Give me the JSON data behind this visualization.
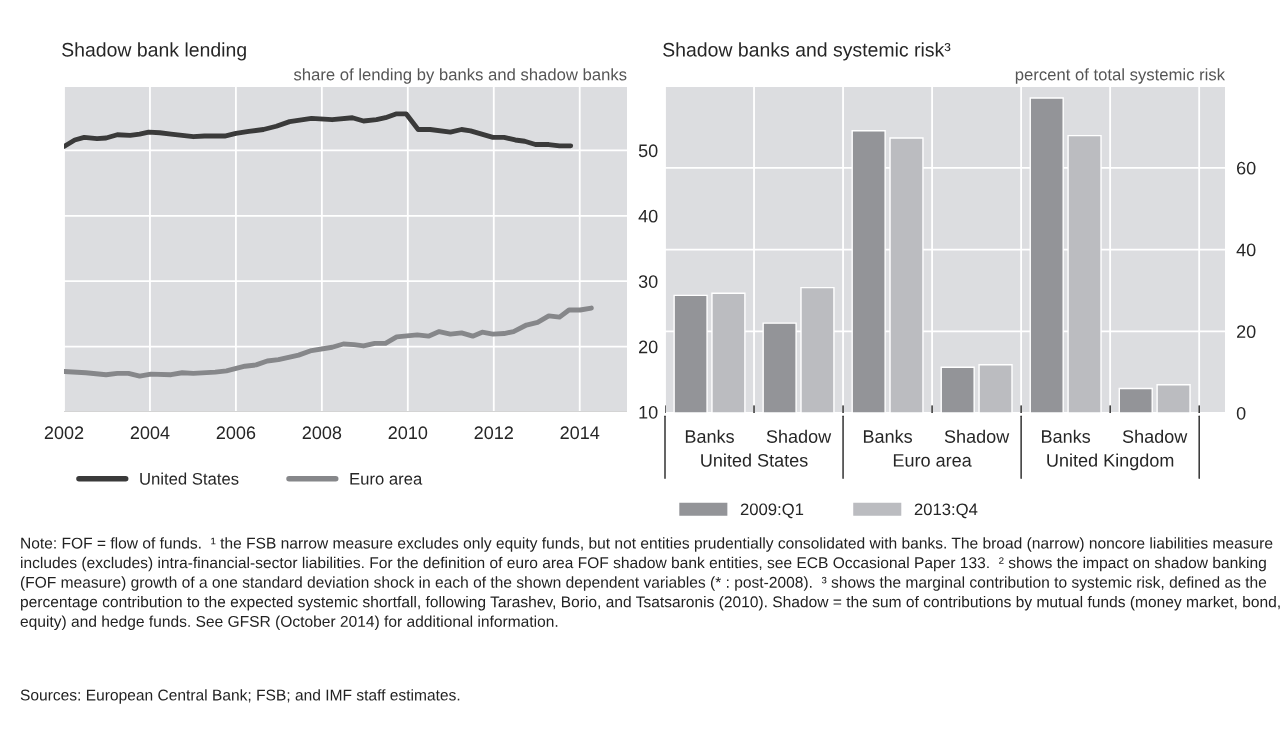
{
  "chart_data": [
    {
      "type": "line",
      "title": "Shadow bank lending",
      "ylabel": "share of lending by banks and shadow banks",
      "xlim": [
        2002,
        2015.1
      ],
      "xticks": [
        2002,
        2004,
        2006,
        2008,
        2010,
        2012,
        2014
      ],
      "ylim": [
        10,
        59.7
      ],
      "yticks": [
        10,
        20,
        30,
        40,
        50
      ],
      "grid": true,
      "legend": "bottom",
      "series": [
        {
          "name": "United States",
          "color": "#3a3a3a",
          "x": [
            2002.0,
            2002.25,
            2002.47,
            2002.77,
            2002.98,
            2003.24,
            2003.54,
            2003.76,
            2003.97,
            2004.23,
            2004.49,
            2004.75,
            2005.01,
            2005.27,
            2005.74,
            2006.0,
            2006.3,
            2006.64,
            2006.94,
            2007.25,
            2007.76,
            2008.24,
            2008.71,
            2008.97,
            2009.27,
            2009.48,
            2009.74,
            2009.96,
            2010.24,
            2010.52,
            2010.99,
            2011.25,
            2011.46,
            2011.98,
            2012.24,
            2012.5,
            2012.72,
            2012.97,
            2013.28,
            2013.53,
            2013.79
          ],
          "values": [
            50.6,
            51.6,
            52.0,
            51.8,
            51.9,
            52.4,
            52.3,
            52.5,
            52.8,
            52.7,
            52.5,
            52.3,
            52.1,
            52.2,
            52.2,
            52.6,
            52.9,
            53.2,
            53.7,
            54.4,
            54.9,
            54.7,
            55.0,
            54.5,
            54.7,
            55.0,
            55.6,
            55.6,
            53.2,
            53.2,
            52.8,
            53.2,
            53.0,
            52.0,
            52.0,
            51.6,
            51.4,
            50.9,
            50.9,
            50.7,
            50.7
          ]
        },
        {
          "name": "Euro area",
          "color": "#86878a",
          "x": [
            2002.0,
            2002.51,
            2002.98,
            2003.24,
            2003.5,
            2003.76,
            2004.02,
            2004.49,
            2004.75,
            2005.01,
            2005.52,
            2005.78,
            2006.21,
            2006.47,
            2006.73,
            2006.99,
            2007.46,
            2007.76,
            2008.24,
            2008.5,
            2008.75,
            2008.97,
            2009.23,
            2009.48,
            2009.74,
            2010.22,
            2010.48,
            2010.73,
            2010.99,
            2011.25,
            2011.51,
            2011.73,
            2011.98,
            2012.24,
            2012.46,
            2012.76,
            2013.02,
            2013.28,
            2013.53,
            2013.75,
            2014.01,
            2014.27
          ],
          "values": [
            16.2,
            16.0,
            15.7,
            15.9,
            15.9,
            15.5,
            15.8,
            15.7,
            16.0,
            15.9,
            16.1,
            16.3,
            17.0,
            17.2,
            17.8,
            18.0,
            18.7,
            19.4,
            19.9,
            20.4,
            20.3,
            20.1,
            20.5,
            20.5,
            21.5,
            21.8,
            21.6,
            22.3,
            21.9,
            22.1,
            21.6,
            22.2,
            21.9,
            22.0,
            22.3,
            23.3,
            23.7,
            24.7,
            24.5,
            25.6,
            25.6,
            25.9
          ]
        }
      ],
      "annotations": [
        "Note: FOF = flow of funds.  ¹ the FSB narrow measure excludes only equity funds, but not entities prudentially consolidated with banks. The broad (narrow) noncore liabilities measure includes (excludes) intra-financial-sector liabilities. For the definition of euro area FOF shadow bank entities, see ECB Occasional Paper 133.  ² shows the impact on shadow banking (FOF measure) growth of a one standard deviation shock in each of the shown dependent variables (* : post-2008).  ³ shows the marginal contribution to systemic risk, defined as the percentage contribution to the expected systemic shortfall, following Tarashev, Borio, and Tsatsaronis (2010). Shadow = the sum of contributions by mutual funds (money market, bond, equity) and hedge funds. See GFSR (October 2014) for additional information.",
        "Sources: European Central Bank; FSB; and IMF staff estimates."
      ]
    },
    {
      "type": "bar",
      "title": "Shadow banks and systemic risk³",
      "ylabel": "percent of total systemic risk",
      "categories": [
        "Banks",
        "Shadow",
        "Banks",
        "Shadow",
        "Banks",
        "Shadow"
      ],
      "ylim": [
        0,
        79.8
      ],
      "yticks": [
        0,
        20,
        40,
        60
      ],
      "grid": true,
      "legend": "bottom",
      "series": [
        {
          "name": "2009:Q1",
          "color": "#939498",
          "values": [
            28.8,
            22.0,
            69.1,
            11.2,
            77.1,
            6.0
          ]
        },
        {
          "name": "2013:Q4",
          "color": "#bbbcc0",
          "values": [
            29.3,
            30.7,
            67.3,
            11.8,
            67.9,
            6.9
          ]
        }
      ],
      "annotations": [
        "United States",
        "Euro area",
        "United Kingdom"
      ]
    }
  ]
}
